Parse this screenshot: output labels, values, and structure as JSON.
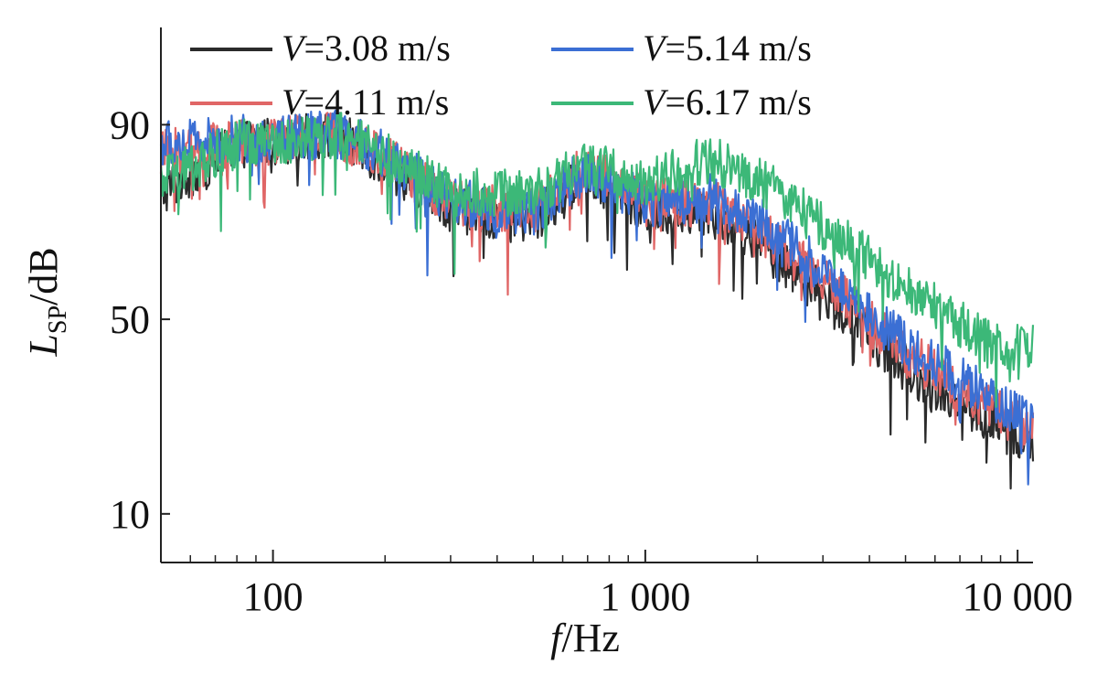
{
  "chart_data": {
    "type": "line",
    "x_scale": "log",
    "xlim": [
      50,
      11000
    ],
    "ylim": [
      0,
      110
    ],
    "xlabel": {
      "var": "f",
      "unit": "Hz"
    },
    "ylabel": {
      "var": "L",
      "sub": "SP",
      "unit": "dB"
    },
    "x_ticks": [
      {
        "value": 100,
        "label": "100"
      },
      {
        "value": 1000,
        "label": "1 000"
      },
      {
        "value": 10000,
        "label": "10 000"
      }
    ],
    "y_ticks": [
      {
        "value": 10,
        "label": "10"
      },
      {
        "value": 50,
        "label": "50"
      },
      {
        "value": 90,
        "label": "90"
      }
    ],
    "grid": false,
    "legend_position": "top",
    "series": [
      {
        "name": "V=3.08 m/s",
        "var": "V",
        "value_text": "=3.08 m/s",
        "color": "#2b2b2b",
        "envelope": [
          [
            50,
            76
          ],
          [
            80,
            86
          ],
          [
            150,
            88
          ],
          [
            200,
            82
          ],
          [
            300,
            73
          ],
          [
            500,
            70
          ],
          [
            700,
            80
          ],
          [
            1000,
            72
          ],
          [
            1500,
            72
          ],
          [
            2000,
            66
          ],
          [
            3000,
            55
          ],
          [
            5000,
            40
          ],
          [
            8000,
            30
          ],
          [
            10000,
            26
          ],
          [
            11000,
            24
          ]
        ],
        "spread": 5
      },
      {
        "name": "V=4.11 m/s",
        "var": "V",
        "value_text": "=4.11 m/s",
        "color": "#e06666",
        "envelope": [
          [
            50,
            84
          ],
          [
            80,
            86
          ],
          [
            150,
            88
          ],
          [
            200,
            83
          ],
          [
            300,
            74
          ],
          [
            500,
            72
          ],
          [
            700,
            82
          ],
          [
            1000,
            74
          ],
          [
            1500,
            74
          ],
          [
            2000,
            69
          ],
          [
            3000,
            58
          ],
          [
            5000,
            43
          ],
          [
            8000,
            33
          ],
          [
            10000,
            29
          ],
          [
            11000,
            27
          ]
        ],
        "spread": 5
      },
      {
        "name": "V=5.14 m/s",
        "var": "V",
        "value_text": "=5.14 m/s",
        "color": "#3b6fd4",
        "envelope": [
          [
            50,
            86
          ],
          [
            80,
            87
          ],
          [
            150,
            88
          ],
          [
            200,
            84
          ],
          [
            300,
            74
          ],
          [
            500,
            72
          ],
          [
            700,
            81
          ],
          [
            1000,
            74
          ],
          [
            1500,
            75
          ],
          [
            2000,
            71
          ],
          [
            3000,
            60
          ],
          [
            5000,
            45
          ],
          [
            8000,
            35
          ],
          [
            10000,
            30
          ],
          [
            11000,
            28
          ]
        ],
        "spread": 5
      },
      {
        "name": "V=6.17 m/s",
        "var": "V",
        "value_text": "=6.17 m/s",
        "color": "#3cb878",
        "envelope": [
          [
            50,
            78
          ],
          [
            80,
            86
          ],
          [
            150,
            88
          ],
          [
            200,
            84
          ],
          [
            300,
            76
          ],
          [
            500,
            76
          ],
          [
            700,
            82
          ],
          [
            1000,
            78
          ],
          [
            1500,
            83
          ],
          [
            2000,
            79
          ],
          [
            3000,
            69
          ],
          [
            5000,
            57
          ],
          [
            8000,
            46
          ],
          [
            10000,
            44
          ],
          [
            11000,
            44
          ]
        ],
        "spread": 5
      }
    ]
  }
}
